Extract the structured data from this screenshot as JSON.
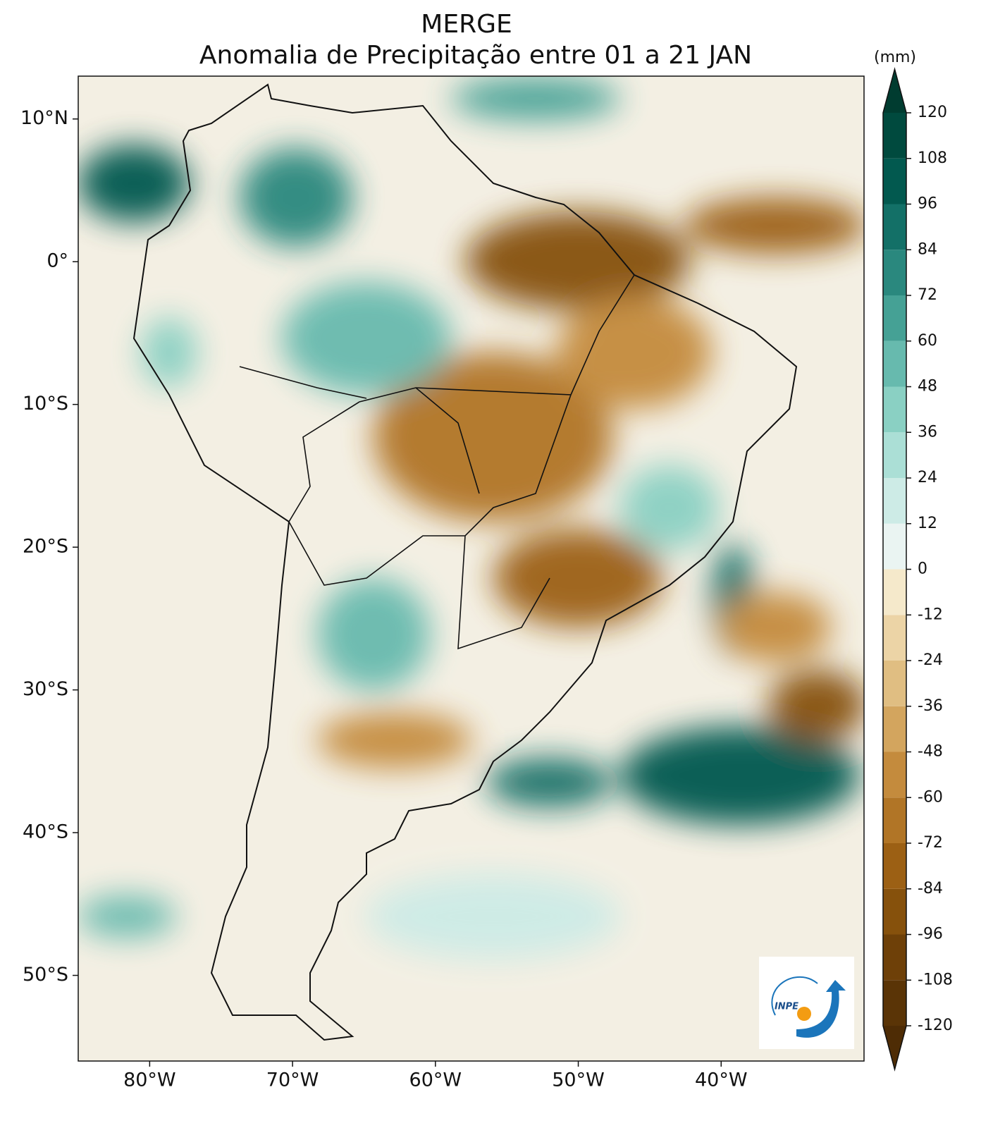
{
  "title": "MERGE",
  "subtitle": "Anomalia de Precipitação entre 01 a 21 JAN",
  "map": {
    "xlim": [
      -85,
      -30
    ],
    "ylim": [
      -56,
      13
    ],
    "xticks": [
      {
        "value": -80,
        "label": "80°W"
      },
      {
        "value": -70,
        "label": "70°W"
      },
      {
        "value": -60,
        "label": "60°W"
      },
      {
        "value": -50,
        "label": "50°W"
      },
      {
        "value": -40,
        "label": "40°W"
      }
    ],
    "yticks": [
      {
        "value": 10,
        "label": "10°N"
      },
      {
        "value": 0,
        "label": "0°"
      },
      {
        "value": -10,
        "label": "10°S"
      },
      {
        "value": -20,
        "label": "20°S"
      },
      {
        "value": -30,
        "label": "30°S"
      },
      {
        "value": -40,
        "label": "40°S"
      },
      {
        "value": -50,
        "label": "50°S"
      }
    ]
  },
  "colorbar": {
    "label": "(mm)",
    "ticks": [
      -120,
      -108,
      -96,
      -84,
      -72,
      -60,
      -48,
      -36,
      -24,
      -12,
      0,
      12,
      24,
      36,
      48,
      60,
      72,
      84,
      96,
      108,
      120
    ],
    "colors": [
      "#5a3406",
      "#6e4008",
      "#86510c",
      "#9c6014",
      "#b17526",
      "#c48b3d",
      "#d3a55e",
      "#e0be82",
      "#ecd4a6",
      "#f5e9cb",
      "#eaf4f2",
      "#cdebe6",
      "#abdfd6",
      "#8ad0c3",
      "#67baae",
      "#45a195",
      "#2a887e",
      "#137067",
      "#02594f",
      "#004a3e"
    ],
    "under_color": "#4e2c05",
    "over_color": "#003c30"
  },
  "logo": {
    "text": "INPE"
  }
}
